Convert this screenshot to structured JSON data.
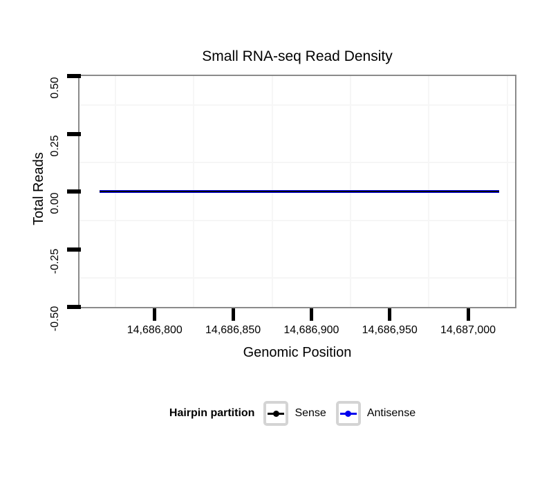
{
  "figure": {
    "background": "#FFFFFF",
    "panel_border_color": "#8A8A8A",
    "grid_minor_color": "#F6F6F6",
    "tick_mark_color": "#000000",
    "text_color": "#000000"
  },
  "chart_data": {
    "type": "line",
    "title": "Small RNA-seq Read Density",
    "xlabel": "Genomic Position",
    "ylabel": "Total Reads",
    "x_domain": [
      14686752,
      14687030
    ],
    "y_domain": [
      -0.5,
      0.5
    ],
    "x_ticks": [
      14686800,
      14686850,
      14686900,
      14686950,
      14687000
    ],
    "x_tick_labels": [
      "14,686,800",
      "14,686,850",
      "14,686,900",
      "14,686,950",
      "14,687,000"
    ],
    "y_ticks": [
      0.5,
      0.25,
      0,
      -0.25,
      -0.5
    ],
    "y_tick_labels": [
      "0.50",
      "0.25",
      "0.00",
      "-0.25",
      "-0.50"
    ],
    "x_minor_gridlines": [
      14686775,
      14686825,
      14686875,
      14686925,
      14686975,
      14687025
    ],
    "y_minor_gridlines": [
      0.375,
      0.125,
      -0.125,
      -0.375
    ],
    "grid": "minor gridlines only, very light gray; no major gridlines visible",
    "series": [
      {
        "name": "Sense",
        "color": "#000000",
        "x": [
          14686765,
          14687020
        ],
        "values": [
          0,
          0
        ]
      },
      {
        "name": "Antisense",
        "color": "#0000EE",
        "x": [
          14686765,
          14687020
        ],
        "values": [
          0,
          0
        ]
      }
    ],
    "legend": {
      "title": "Hairpin partition",
      "position": "bottom",
      "key_glyph": "horizontal line with filled point",
      "key_box_border_color": "#D4D4D4",
      "entries": [
        {
          "label": "Sense",
          "color": "#000000"
        },
        {
          "label": "Antisense",
          "color": "#0000EE"
        }
      ]
    }
  }
}
